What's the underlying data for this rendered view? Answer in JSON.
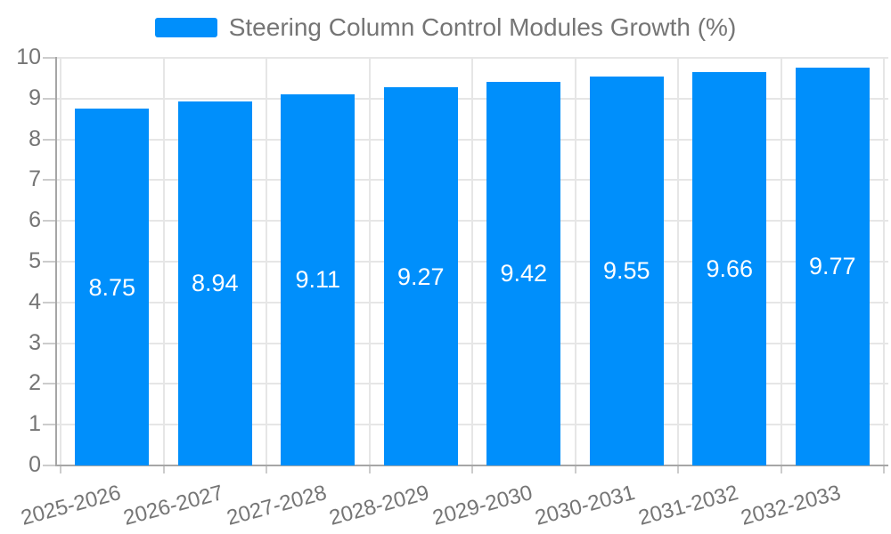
{
  "legend": {
    "label": "Steering Column Control Modules Growth (%)"
  },
  "chart_data": {
    "type": "bar",
    "title": "Steering Column Control Modules Growth (%)",
    "categories": [
      "2025-2026",
      "2026-2027",
      "2027-2028",
      "2028-2029",
      "2029-2030",
      "2030-2031",
      "2031-2032",
      "2032-2033"
    ],
    "series": [
      {
        "name": "Steering Column Control Modules Growth (%)",
        "values": [
          8.75,
          8.94,
          9.11,
          9.27,
          9.42,
          9.55,
          9.66,
          9.77
        ]
      }
    ],
    "data_labels": [
      "8.75",
      "8.94",
      "9.11",
      "9.27",
      "9.42",
      "9.55",
      "9.66",
      "9.77"
    ],
    "xlabel": "",
    "ylabel": "",
    "ylim": [
      0,
      10
    ],
    "yticks": [
      0,
      1,
      2,
      3,
      4,
      5,
      6,
      7,
      8,
      9,
      10
    ],
    "grid": true,
    "legend_position": "top",
    "colors": {
      "bar": "#008ffb",
      "data_label": "#ffffff",
      "axis_label": "#757575",
      "gridline": "#e6e6e6",
      "axis_line": "#a6a6a6",
      "tick": "#cccccc",
      "background": "#ffffff"
    }
  }
}
